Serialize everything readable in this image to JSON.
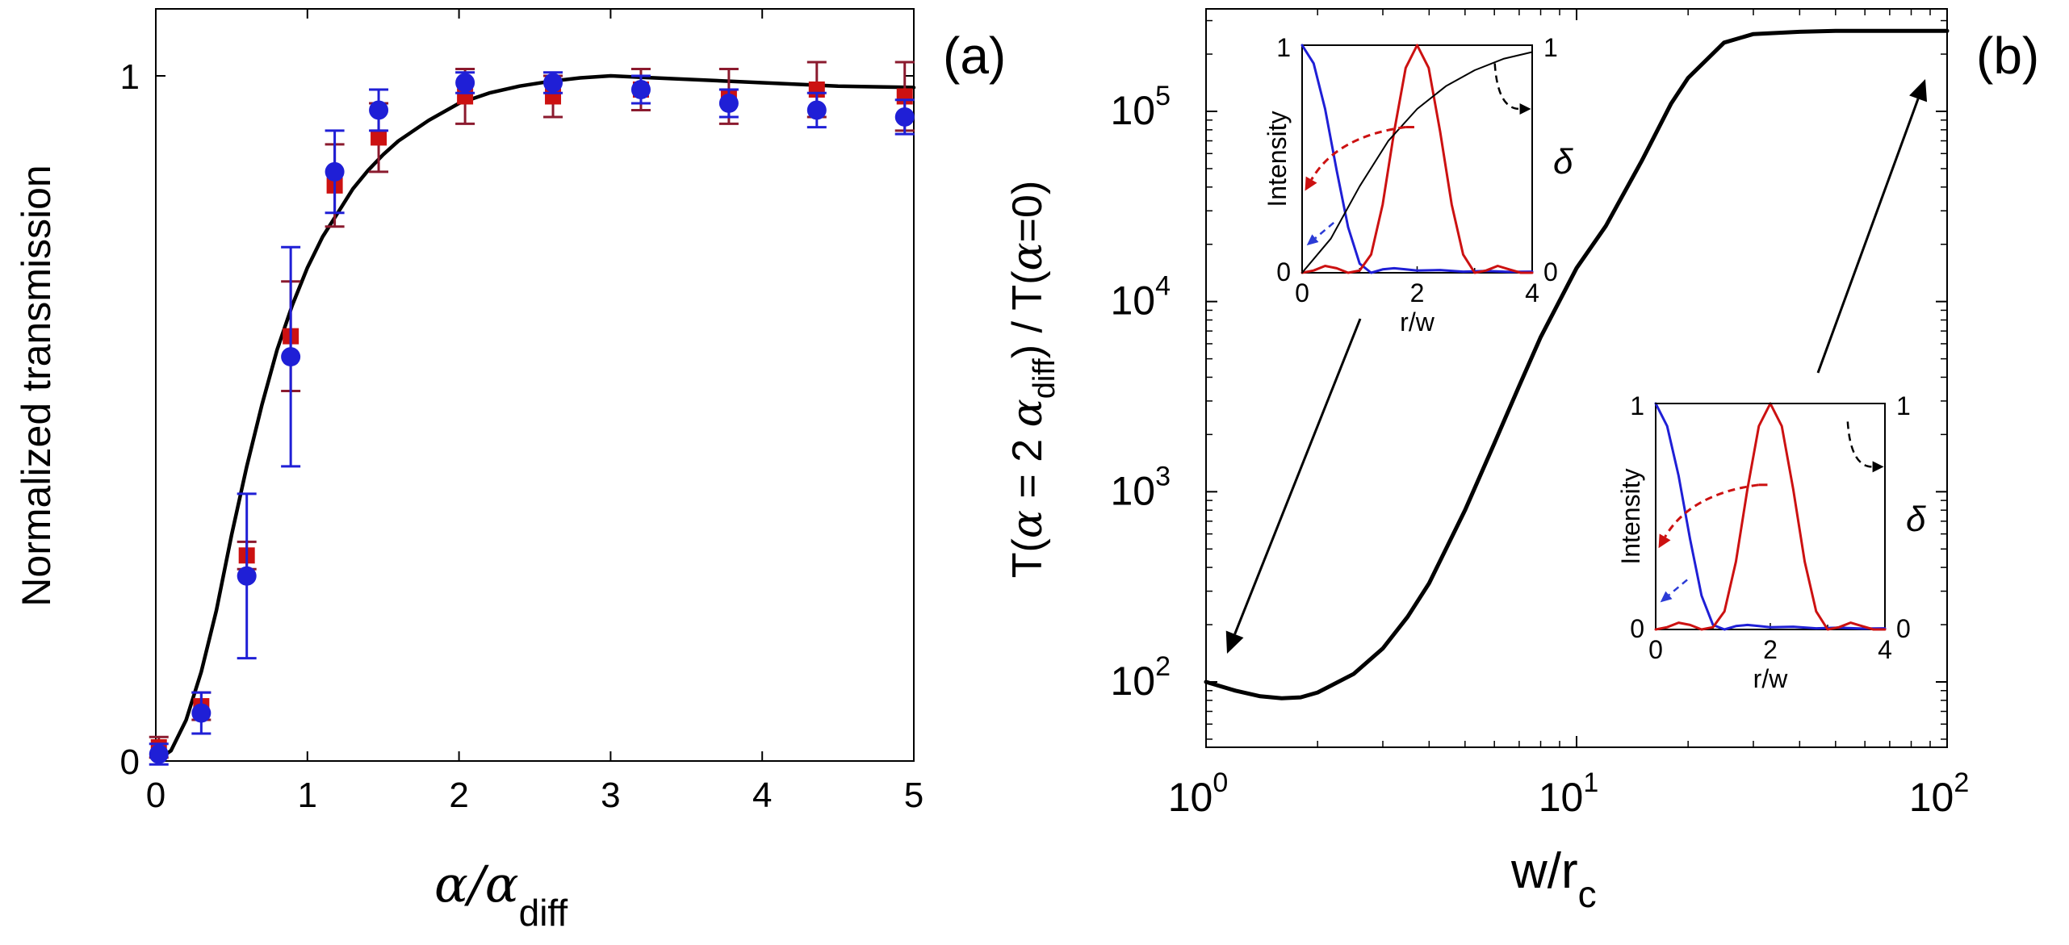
{
  "chart_data": [
    {
      "type": "scatter",
      "panel_label": "(a)",
      "xlabel_main": "α/α",
      "xlabel_sub": "diff",
      "ylabel": "Normalized transmission",
      "xlim": [
        0,
        5
      ],
      "ylim": [
        0,
        1
      ],
      "xticks": [
        0,
        1,
        2,
        3,
        4,
        5
      ],
      "xtick_labels": [
        "0",
        "1",
        "2",
        "3",
        "4",
        "5"
      ],
      "yticks": [
        0,
        1
      ],
      "ytick_labels": [
        "0",
        "1"
      ],
      "series": [
        {
          "name": "model",
          "style": "line",
          "color": "#000000",
          "x": [
            0,
            0.1,
            0.2,
            0.3,
            0.4,
            0.5,
            0.6,
            0.7,
            0.8,
            0.9,
            1.0,
            1.1,
            1.2,
            1.3,
            1.4,
            1.5,
            1.6,
            1.8,
            2.0,
            2.2,
            2.4,
            2.6,
            2.8,
            3.0,
            3.2,
            3.5,
            4.0,
            4.5,
            5.0
          ],
          "y": [
            0,
            0.015,
            0.06,
            0.13,
            0.22,
            0.33,
            0.43,
            0.52,
            0.6,
            0.665,
            0.72,
            0.765,
            0.8,
            0.835,
            0.862,
            0.885,
            0.905,
            0.935,
            0.96,
            0.975,
            0.985,
            0.992,
            0.997,
            1.0,
            0.998,
            0.995,
            0.99,
            0.985,
            0.983
          ]
        },
        {
          "name": "blue data",
          "style": "circle",
          "color": "#1f1fd6",
          "errorbar_color": "#1f1fd6",
          "x": [
            0.02,
            0.3,
            0.6,
            0.89,
            1.18,
            1.47,
            2.04,
            2.62,
            3.2,
            3.78,
            4.36,
            4.94
          ],
          "y": [
            0.01,
            0.07,
            0.27,
            0.59,
            0.86,
            0.95,
            0.99,
            0.99,
            0.98,
            0.96,
            0.95,
            0.94
          ],
          "err": [
            0.015,
            0.03,
            0.12,
            0.16,
            0.06,
            0.03,
            0.015,
            0.015,
            0.02,
            0.02,
            0.025,
            0.025
          ]
        },
        {
          "name": "red data",
          "style": "square",
          "color": "#cc1111",
          "errorbar_color": "#8b1a2e",
          "x": [
            0.02,
            0.3,
            0.6,
            0.89,
            1.18,
            1.47,
            2.04,
            2.62,
            3.2,
            3.78,
            4.36,
            4.94
          ],
          "y": [
            0.02,
            0.08,
            0.3,
            0.62,
            0.84,
            0.91,
            0.97,
            0.97,
            0.98,
            0.97,
            0.98,
            0.97
          ],
          "err": [
            0.015,
            0.02,
            0.02,
            0.08,
            0.06,
            0.05,
            0.04,
            0.03,
            0.03,
            0.04,
            0.04,
            0.05
          ]
        }
      ]
    },
    {
      "type": "line",
      "panel_label": "(b)",
      "xlabel_main": "w/r",
      "xlabel_sub": "c",
      "ylabel_prefix": "T(",
      "ylabel_alpha1": "α",
      "ylabel_mid": " = 2 ",
      "ylabel_alpha2": "α",
      "ylabel_sub": "diff",
      "ylabel_mid2": ") / T(",
      "ylabel_alpha3": "α",
      "ylabel_suffix": "=0)",
      "xscale": "log",
      "yscale": "log",
      "xlim": [
        1,
        100
      ],
      "ylim": [
        50,
        400000
      ],
      "xtick_base": "10",
      "xtick_exps": [
        "0",
        "1",
        "2"
      ],
      "ytick_base": "10",
      "ytick_exps": [
        "2",
        "3",
        "4",
        "5"
      ],
      "series": [
        {
          "name": "ratio curve",
          "color": "#000000",
          "x": [
            1.0,
            1.2,
            1.4,
            1.6,
            1.8,
            2.0,
            2.5,
            3.0,
            3.5,
            4.0,
            5.0,
            6.0,
            7.0,
            8.0,
            10.0,
            12.0,
            15.0,
            18.0,
            20.0,
            25.0,
            30.0,
            40.0,
            50.0,
            70.0,
            100.0
          ],
          "y": [
            100,
            90,
            84,
            82,
            83,
            88,
            110,
            150,
            220,
            330,
            800,
            1800,
            3600,
            6500,
            15000,
            25000,
            55000,
            110000,
            150000,
            230000,
            255000,
            262000,
            265000,
            265000,
            265000
          ]
        }
      ]
    },
    {
      "type": "line",
      "role": "inset",
      "xlabel": "r/w",
      "ylabel_left": "Intensity",
      "ylabel_right": "δ",
      "xlim": [
        0,
        4
      ],
      "xtick_labels": [
        "0",
        "2",
        "4"
      ],
      "ytick_left_labels": [
        "0",
        "1"
      ],
      "ytick_right_labels": [
        "0",
        "1"
      ],
      "series": [
        {
          "name": "blue intensity",
          "color": "#1f1fd6",
          "x": [
            0,
            0.2,
            0.4,
            0.6,
            0.8,
            1.0,
            1.2,
            1.4,
            1.6,
            1.8,
            2.0,
            2.4,
            2.8,
            3.2,
            3.6,
            4.0
          ],
          "y": [
            1,
            0.92,
            0.72,
            0.45,
            0.2,
            0.04,
            0.0,
            0.015,
            0.02,
            0.015,
            0.01,
            0.012,
            0.005,
            0.008,
            0.004,
            0.005
          ]
        },
        {
          "name": "red intensity",
          "color": "#cc1111",
          "x": [
            0,
            0.2,
            0.4,
            0.6,
            0.8,
            1.0,
            1.2,
            1.4,
            1.6,
            1.8,
            2.0,
            2.2,
            2.4,
            2.6,
            2.8,
            3.0,
            3.2,
            3.4,
            3.6,
            3.8,
            4.0
          ],
          "y": [
            0,
            0.01,
            0.03,
            0.02,
            0.0,
            0.01,
            0.08,
            0.3,
            0.62,
            0.9,
            1.0,
            0.9,
            0.62,
            0.3,
            0.08,
            0.0,
            0.01,
            0.03,
            0.015,
            0.0,
            0.0
          ]
        },
        {
          "name": "delta",
          "color": "#000000",
          "x": [
            0,
            0.5,
            1.0,
            1.5,
            2.0,
            2.5,
            3.0,
            3.5,
            4.0
          ],
          "y": [
            0,
            0.15,
            0.38,
            0.58,
            0.72,
            0.82,
            0.89,
            0.94,
            0.97
          ]
        }
      ]
    },
    {
      "type": "line",
      "role": "inset",
      "xlabel": "r/w",
      "ylabel_left": "Intensity",
      "ylabel_right": "δ",
      "xlim": [
        0,
        4
      ],
      "xtick_labels": [
        "0",
        "2",
        "4"
      ],
      "ytick_left_labels": [
        "0",
        "1"
      ],
      "ytick_right_labels": [
        "0",
        "1"
      ],
      "series": [
        {
          "name": "blue intensity",
          "color": "#1f1fd6",
          "x": [
            0,
            0.2,
            0.4,
            0.6,
            0.8,
            1.0,
            1.2,
            1.4,
            1.6,
            1.8,
            2.0,
            2.4,
            2.8,
            3.2,
            3.6,
            4.0
          ],
          "y": [
            1,
            0.9,
            0.68,
            0.4,
            0.15,
            0.02,
            0.0,
            0.015,
            0.02,
            0.015,
            0.01,
            0.012,
            0.005,
            0.008,
            0.004,
            0.005
          ]
        },
        {
          "name": "red intensity",
          "color": "#cc1111",
          "x": [
            0,
            0.2,
            0.4,
            0.6,
            0.8,
            1.0,
            1.2,
            1.4,
            1.6,
            1.8,
            2.0,
            2.2,
            2.4,
            2.6,
            2.8,
            3.0,
            3.2,
            3.4,
            3.6,
            3.8,
            4.0
          ],
          "y": [
            0,
            0.01,
            0.03,
            0.02,
            0.0,
            0.01,
            0.08,
            0.3,
            0.62,
            0.9,
            1.0,
            0.9,
            0.62,
            0.3,
            0.08,
            0.0,
            0.01,
            0.03,
            0.015,
            0.0,
            0.0
          ]
        },
        {
          "name": "delta",
          "color": "#000000",
          "x": [
            0,
            0.5,
            1.0,
            1.5,
            2.0,
            2.5,
            3.0,
            3.5,
            4.0
          ],
          "y": [
            1,
            1,
            1,
            1,
            1,
            1,
            1,
            1,
            1
          ]
        }
      ]
    }
  ]
}
